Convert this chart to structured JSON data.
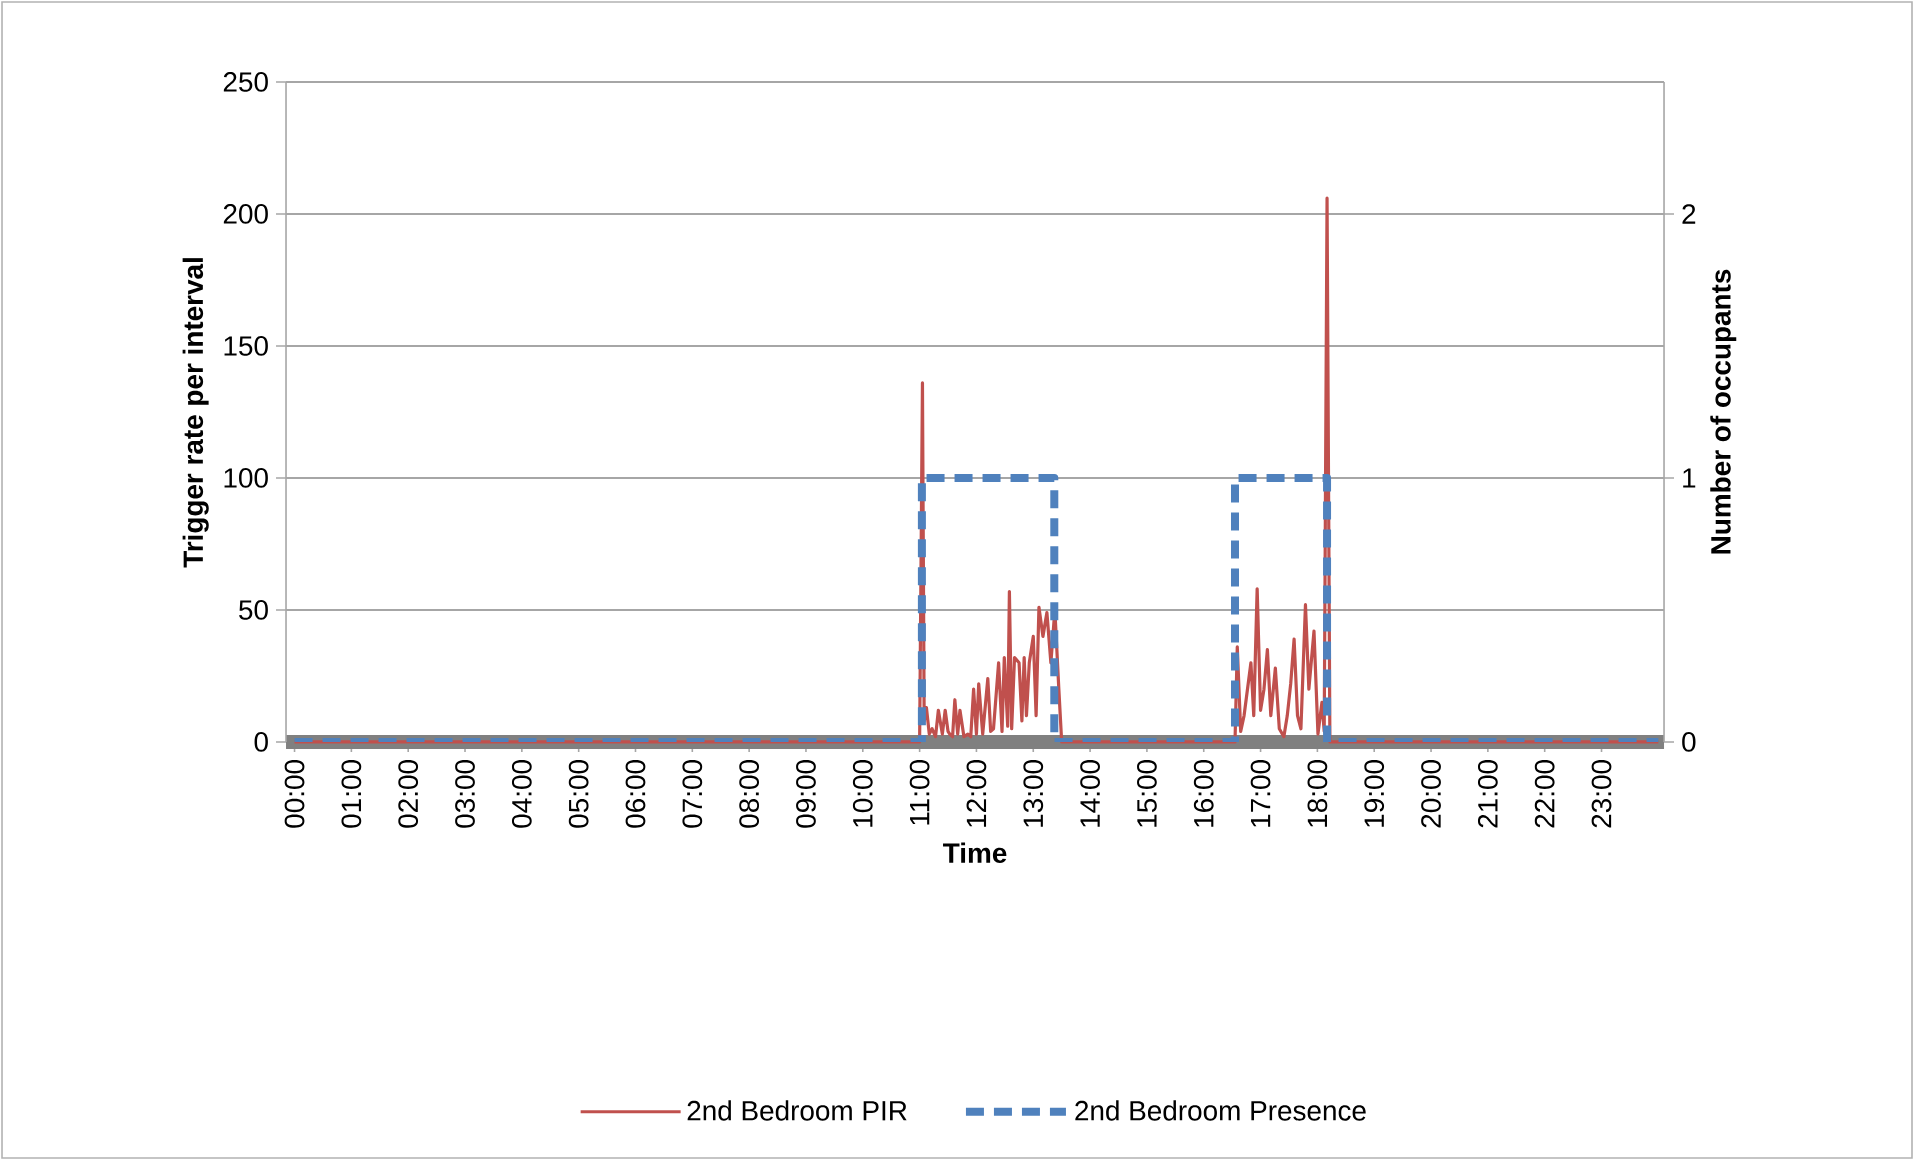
{
  "chart_data": {
    "type": "line",
    "xlabel": "Time",
    "ylabel": "Trigger rate per interval",
    "y2label": "Number of occupants",
    "xlim": [
      -0.15,
      24.1
    ],
    "xticks": [
      {
        "value": 0,
        "label": "00:00"
      },
      {
        "value": 1,
        "label": "01:00"
      },
      {
        "value": 2,
        "label": "02:00"
      },
      {
        "value": 3,
        "label": "03:00"
      },
      {
        "value": 4,
        "label": "04:00"
      },
      {
        "value": 5,
        "label": "05:00"
      },
      {
        "value": 6,
        "label": "06:00"
      },
      {
        "value": 7,
        "label": "07:00"
      },
      {
        "value": 8,
        "label": "08:00"
      },
      {
        "value": 9,
        "label": "09:00"
      },
      {
        "value": 10,
        "label": "10:00"
      },
      {
        "value": 11,
        "label": "11:00"
      },
      {
        "value": 12,
        "label": "12:00"
      },
      {
        "value": 13,
        "label": "13:00"
      },
      {
        "value": 14,
        "label": "14:00"
      },
      {
        "value": 15,
        "label": "15:00"
      },
      {
        "value": 16,
        "label": "16:00"
      },
      {
        "value": 17,
        "label": "17:00"
      },
      {
        "value": 18,
        "label": "18:00"
      },
      {
        "value": 19,
        "label": "19:00"
      },
      {
        "value": 20,
        "label": "20:00"
      },
      {
        "value": 21,
        "label": "21:00"
      },
      {
        "value": 22,
        "label": "22:00"
      },
      {
        "value": 23,
        "label": "23:00"
      }
    ],
    "ylim": [
      0,
      250
    ],
    "yticks": [
      0,
      50,
      100,
      150,
      200,
      250
    ],
    "y2lim": [
      0,
      2.5
    ],
    "y2ticks": [
      0,
      1,
      2
    ],
    "grid": "y",
    "legend": "bottom",
    "marker": "none",
    "series": [
      {
        "name": "2nd Bedroom PIR",
        "color": "#c0504d",
        "line_style": "solid",
        "x": [
          0,
          11.0,
          11.05,
          11.08,
          11.12,
          11.17,
          11.22,
          11.28,
          11.33,
          11.4,
          11.45,
          11.5,
          11.53,
          11.58,
          11.62,
          11.67,
          11.71,
          11.78,
          11.85,
          11.9,
          11.95,
          12.0,
          12.04,
          12.11,
          12.2,
          12.25,
          12.3,
          12.39,
          12.45,
          12.49,
          12.55,
          12.58,
          12.62,
          12.67,
          12.75,
          12.8,
          12.84,
          12.88,
          12.93,
          13.0,
          13.05,
          13.1,
          13.17,
          13.24,
          13.31,
          13.38,
          13.45,
          13.5,
          16.55,
          16.59,
          16.65,
          16.71,
          16.83,
          16.88,
          16.94,
          17.0,
          17.06,
          17.12,
          17.18,
          17.26,
          17.33,
          17.41,
          17.47,
          17.53,
          17.59,
          17.65,
          17.71,
          17.79,
          17.85,
          17.94,
          18.01,
          18.08,
          18.12,
          18.17,
          18.22,
          24
        ],
        "values": [
          0,
          0,
          136,
          8,
          13,
          3,
          5,
          2,
          12,
          3,
          12,
          4,
          3,
          2,
          16,
          3,
          12,
          2,
          3,
          2,
          20,
          3,
          22,
          3,
          24,
          4,
          5,
          30,
          4,
          32,
          6,
          57,
          5,
          32,
          30,
          8,
          32,
          10,
          30,
          40,
          10,
          51,
          40,
          49,
          30,
          50,
          20,
          0,
          0,
          36,
          4,
          10,
          30,
          10,
          58,
          12,
          20,
          35,
          10,
          28,
          5,
          2,
          10,
          22,
          39,
          10,
          5,
          52,
          20,
          42,
          3,
          15,
          4,
          206,
          0,
          0
        ]
      },
      {
        "name": "2nd Bedroom Presence",
        "color": "#4f81bd",
        "line_style": "dashed",
        "axis": "y2",
        "x": [
          0,
          11.04,
          11.04,
          13.37,
          13.37,
          16.55,
          16.55,
          18.17,
          18.17,
          24
        ],
        "values": [
          0,
          0,
          1,
          1,
          0,
          0,
          1,
          1,
          0,
          0
        ]
      }
    ]
  }
}
